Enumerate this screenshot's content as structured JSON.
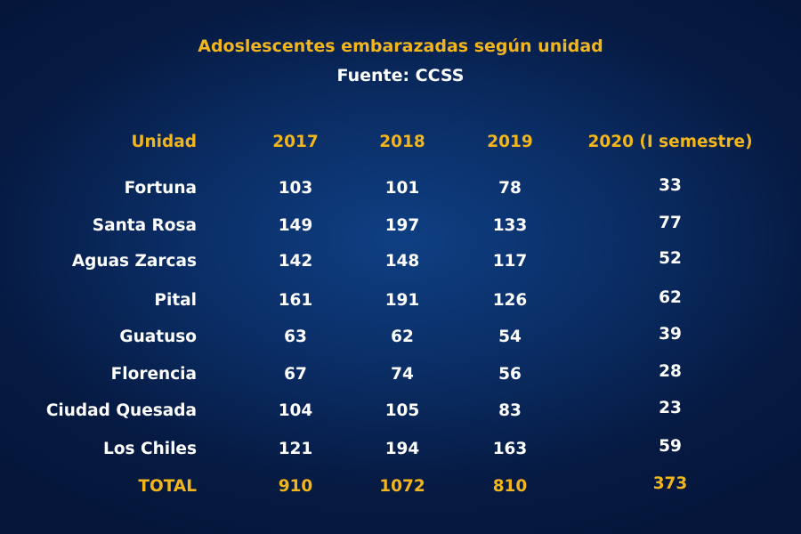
{
  "colors": {
    "background": "#0a2c63",
    "accent": "#f2b51c",
    "text": "#ffffff"
  },
  "title": "Adoslescentes embarazadas según unidad",
  "subtitle": "Fuente: CCSS",
  "chart_data": {
    "type": "table",
    "title": "Adoslescentes embarazadas según unidad",
    "subtitle": "Fuente: CCSS",
    "columns": [
      "Unidad",
      "2017",
      "2018",
      "2019",
      "2020 (I semestre)"
    ],
    "rows": [
      {
        "unidad": "Fortuna",
        "values": [
          103,
          101,
          78,
          33
        ]
      },
      {
        "unidad": "Santa Rosa",
        "values": [
          149,
          197,
          133,
          77
        ]
      },
      {
        "unidad": "Aguas Zarcas",
        "values": [
          142,
          148,
          117,
          52
        ]
      },
      {
        "unidad": "Pital",
        "values": [
          161,
          191,
          126,
          62
        ]
      },
      {
        "unidad": "Guatuso",
        "values": [
          63,
          62,
          54,
          39
        ]
      },
      {
        "unidad": "Florencia",
        "values": [
          67,
          74,
          56,
          28
        ]
      },
      {
        "unidad": "Ciudad Quesada",
        "values": [
          104,
          105,
          83,
          23
        ]
      },
      {
        "unidad": "Los Chiles",
        "values": [
          121,
          194,
          163,
          59
        ]
      }
    ],
    "total": {
      "unidad": "TOTAL",
      "values": [
        910,
        1072,
        810,
        373
      ]
    }
  }
}
